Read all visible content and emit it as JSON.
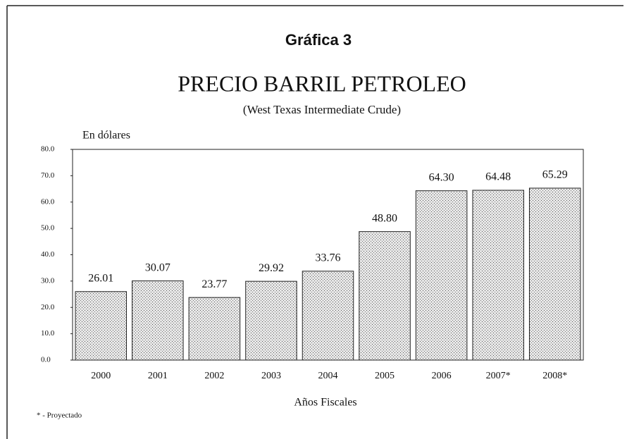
{
  "chart_data": {
    "type": "bar",
    "header": "Gráfica 3",
    "title": "PRECIO BARRIL PETROLEO",
    "subtitle": "(West Texas Intermediate Crude)",
    "y_label": "En dólares",
    "x_label": "Años Fiscales",
    "note": "* - Proyectado",
    "categories": [
      "2000",
      "2001",
      "2002",
      "2003",
      "2004",
      "2005",
      "2006",
      "2007*",
      "2008*"
    ],
    "values": [
      26.01,
      30.07,
      23.77,
      29.92,
      33.76,
      48.8,
      64.3,
      64.48,
      65.29
    ],
    "value_labels": [
      "26.01",
      "30.07",
      "23.77",
      "29.92",
      "33.76",
      "48.80",
      "64.30",
      "64.48",
      "65.29"
    ],
    "color": "#bdbdbd",
    "ylim": [
      0,
      80
    ],
    "yticks": [
      {
        "value": 0,
        "label": "0.0"
      },
      {
        "value": 10,
        "label": "10.0"
      },
      {
        "value": 20,
        "label": "20.0"
      },
      {
        "value": 30,
        "label": "30.0"
      },
      {
        "value": 40,
        "label": "40.0"
      },
      {
        "value": 50,
        "label": "50.0"
      },
      {
        "value": 60,
        "label": "60.0"
      },
      {
        "value": 70,
        "label": "70.0"
      },
      {
        "value": 80,
        "label": "80.0"
      }
    ],
    "grid": false
  }
}
